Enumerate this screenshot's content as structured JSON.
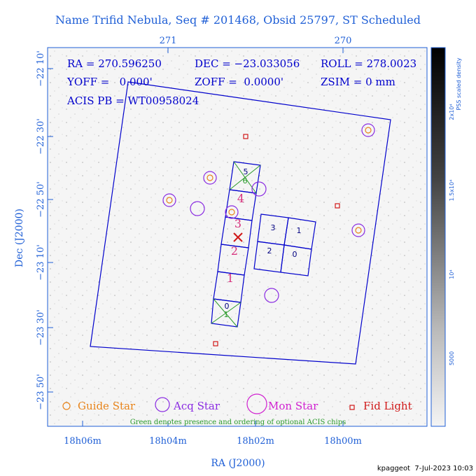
{
  "title": "Name Trifid Nebula, Seq # 201468, Obsid 25797, ST Scheduled",
  "axes": {
    "xlabel": "RA (J2000)",
    "ylabel": "Dec (J2000)",
    "top_ticks": [
      "271",
      "270"
    ],
    "bottom_ticks": [
      "18h06m",
      "18h04m",
      "18h02m",
      "18h00m"
    ],
    "left_ticks": [
      "−22 10'",
      "−22 30'",
      "−22 50'",
      "−23 10'",
      "−23 30'",
      "−23 50'"
    ]
  },
  "info": {
    "ra": "RA = 270.596250",
    "dec": "DEC = −23.033056",
    "roll": "ROLL = 278.0023",
    "yoff": "YOFF =   0.000'",
    "zoff": "ZOFF =  0.0000'",
    "zsim": "ZSIM = 0 mm",
    "acis": "ACIS PB = WT00958024"
  },
  "colorbar": {
    "label_top": "PSS scaled density",
    "ticks": [
      "2x10⁴",
      "1.5x10⁴",
      "10⁴",
      "5000"
    ]
  },
  "legend": {
    "guide": "Guide Star",
    "acq": "Acq Star",
    "mon": "Mon Star",
    "fid": "Fid Light",
    "note": "Green denotes presence and ordering of optional ACIS chips"
  },
  "chips": {
    "acis_s": [
      "0",
      "1",
      "2",
      "3",
      "4",
      "5"
    ],
    "acis_i": [
      "3",
      "1",
      "2",
      "0"
    ],
    "optional_s0": "0",
    "optional_s0_order": "1",
    "optional_s5": "5",
    "optional_s5_order": "6"
  },
  "footer": "kpaggeot  7-Jul-2023 10:03",
  "colors": {
    "axis": "#1f5fd6",
    "guide": "#e8841a",
    "acq": "#8a2be2",
    "mon": "#d020d0",
    "fid": "#d01818",
    "optional": "#2a9a2a",
    "ccd_label": "#d6307c"
  }
}
